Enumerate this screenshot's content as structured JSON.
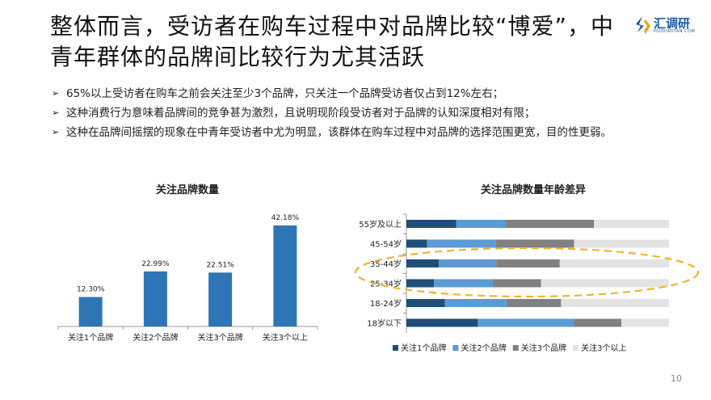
{
  "title": "整体而言，受访者在购车过程中对品牌比较“博爱”，中青年群体的品牌间比较行为尤其活跃",
  "logo": {
    "text": "汇调研",
    "sub": "HUIDIAOYAN.COM"
  },
  "bullets": [
    "65%以上受访者在购车之前会关注至少3个品牌，只关注一个品牌受访者仅占到12%左右；",
    "这种消费行为意味着品牌间的竞争甚为激烈，且说明现阶段受访者对于品牌的认知深度相对有限；",
    "这种在品牌间摇摆的现象在中青年受访者中尤为明显，该群体在购车过程中对品牌的选择范围更宽，目的性更弱。"
  ],
  "bullet_marker_icon": "arrow-right-icon",
  "page_number": "10",
  "chart_data": [
    {
      "type": "bar",
      "title": "关注品牌数量",
      "categories": [
        "关注1个品牌",
        "关注2个品牌",
        "关注3个品牌",
        "关注3个以上"
      ],
      "values": [
        12.3,
        22.99,
        22.51,
        42.18
      ],
      "data_labels": [
        "12.30%",
        "22.99%",
        "22.51%",
        "42.18%"
      ],
      "color": "#2e75b6",
      "grid": false
    },
    {
      "type": "bar",
      "orientation": "horizontal",
      "stacked": "100%",
      "title": "关注品牌数量年龄差异",
      "categories": [
        "55岁及以上",
        "45-54岁",
        "35-44岁",
        "25-34岁",
        "18-24岁",
        "18岁以下"
      ],
      "series": [
        {
          "name": "关注1个品牌",
          "color": "#1f4e79",
          "values": [
            19.0,
            7.9,
            12.4,
            10.5,
            14.6,
            27.2
          ]
        },
        {
          "name": "关注2个品牌",
          "color": "#5b9bd5",
          "values": [
            19.0,
            26.2,
            21.8,
            22.4,
            23.6,
            36.5
          ]
        },
        {
          "name": "关注3个品牌",
          "color": "#808080",
          "values": [
            33.4,
            29.8,
            24.2,
            18.4,
            20.7,
            18.2
          ]
        },
        {
          "name": "关注3个以上",
          "color": "#e3e3e3",
          "values": [
            28.6,
            36.1,
            41.6,
            48.7,
            41.1,
            18.1
          ]
        }
      ],
      "legend": "bottom",
      "highlight": {
        "categories": [
          "35-44岁",
          "25-34岁"
        ],
        "color": "#f0b429",
        "style": "dashed-ellipse"
      },
      "grid": false
    }
  ]
}
